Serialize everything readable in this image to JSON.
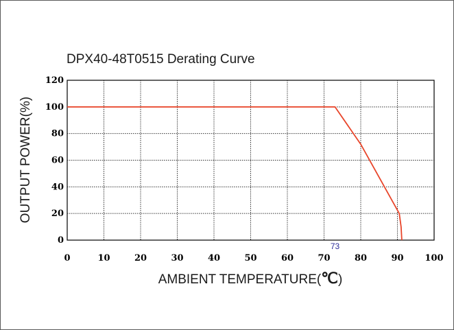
{
  "chart_data": {
    "type": "line",
    "title": "DPX40-48T0515 Derating Curve",
    "xlabel": "AMBIENT TEMPERATURE(",
    "xlabel_unit": "℃",
    "xlabel_suffix": ")",
    "ylabel": "OUTPUT POWER(%)",
    "ylim": [
      0,
      120
    ],
    "xlim": [
      0,
      100
    ],
    "x_ticks": [
      0,
      10,
      20,
      30,
      40,
      50,
      60,
      70,
      80,
      90,
      100
    ],
    "y_ticks": [
      0,
      20,
      40,
      60,
      80,
      100,
      120
    ],
    "grid": true,
    "series": [
      {
        "color": "#e8452a",
        "x": [
          0,
          73,
          80,
          90.5,
          91,
          91.2
        ],
        "y": [
          100,
          100,
          72,
          20,
          10,
          0
        ]
      }
    ],
    "annotations": [
      {
        "text": "73",
        "x": 73
      }
    ]
  }
}
